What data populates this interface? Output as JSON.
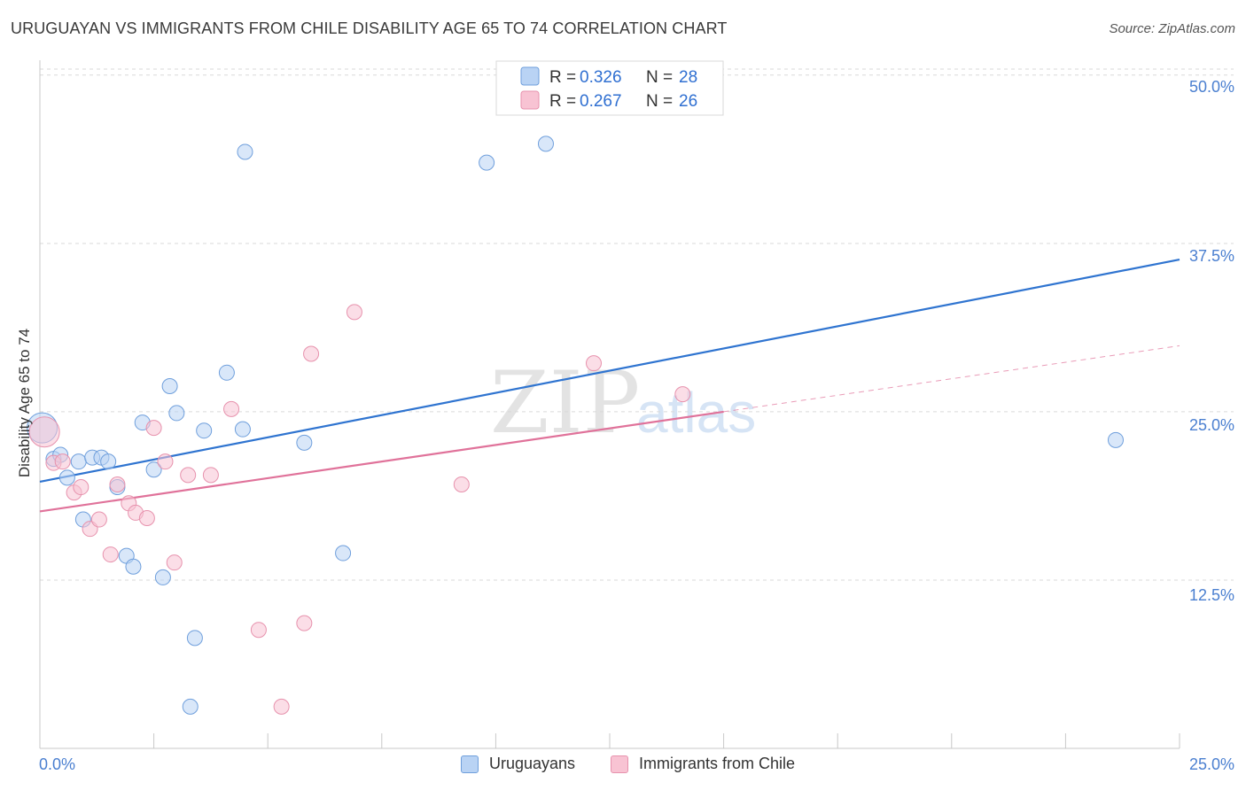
{
  "title": "URUGUAYAN VS IMMIGRANTS FROM CHILE DISABILITY AGE 65 TO 74 CORRELATION CHART",
  "source": "Source: ZipAtlas.com",
  "watermark": {
    "zip": "ZIP",
    "atlas": "atlas"
  },
  "colors": {
    "blue_fill": "#b9d3f4",
    "blue_stroke": "#6f9fdc",
    "blue_line": "#2f74d0",
    "pink_fill": "#f8c3d3",
    "pink_stroke": "#e792ad",
    "pink_line": "#e0729a",
    "axis_text": "#4a7fd0",
    "grid": "#d9d9d9"
  },
  "legend": {
    "row1": {
      "r_label": "R = ",
      "r_value": "0.326",
      "n_label": "N = ",
      "n_value": "28"
    },
    "row2": {
      "r_label": "R = ",
      "r_value": "0.267",
      "n_label": "N = ",
      "n_value": "26"
    }
  },
  "bottom_legend": {
    "series1": "Uruguayans",
    "series2": "Immigrants from Chile"
  },
  "chart_data": {
    "type": "scatter",
    "title": "URUGUAYAN VS IMMIGRANTS FROM CHILE DISABILITY AGE 65 TO 74 CORRELATION CHART",
    "xlabel": "",
    "ylabel": "Disability Age 65 to 74",
    "xlim": [
      0,
      25
    ],
    "ylim": [
      0,
      51.5
    ],
    "x_tick_labels": [
      "0.0%",
      "25.0%"
    ],
    "y_ticks": [
      12.5,
      25.0,
      37.5,
      50.0
    ],
    "y_tick_labels": [
      "12.5%",
      "25.0%",
      "37.5%",
      "50.0%"
    ],
    "grid": true,
    "legend_position": "top-center",
    "series": [
      {
        "name": "Uruguayans",
        "r": 0.326,
        "n": 28,
        "trend": {
          "x": [
            0,
            25
          ],
          "y": [
            19.8,
            36.3
          ],
          "style": "solid"
        },
        "points": [
          [
            0.05,
            23.8
          ],
          [
            0.3,
            21.5
          ],
          [
            0.45,
            21.8
          ],
          [
            0.6,
            20.1
          ],
          [
            0.85,
            21.3
          ],
          [
            0.95,
            17.0
          ],
          [
            1.15,
            21.6
          ],
          [
            1.35,
            21.6
          ],
          [
            1.5,
            21.3
          ],
          [
            1.7,
            19.4
          ],
          [
            1.9,
            14.3
          ],
          [
            2.05,
            13.5
          ],
          [
            2.25,
            24.2
          ],
          [
            2.5,
            20.7
          ],
          [
            2.7,
            12.7
          ],
          [
            2.85,
            26.9
          ],
          [
            3.0,
            24.9
          ],
          [
            3.4,
            8.2
          ],
          [
            3.3,
            3.1
          ],
          [
            3.6,
            23.6
          ],
          [
            4.1,
            27.9
          ],
          [
            4.5,
            44.3
          ],
          [
            4.45,
            23.7
          ],
          [
            5.8,
            22.7
          ],
          [
            6.65,
            14.5
          ],
          [
            9.8,
            43.5
          ],
          [
            11.1,
            44.9
          ],
          [
            23.6,
            22.9
          ]
        ]
      },
      {
        "name": "Immigrants from Chile",
        "r": 0.267,
        "n": 26,
        "trend": {
          "x": [
            0,
            15
          ],
          "y": [
            17.6,
            25.0
          ],
          "style": "solid"
        },
        "trend_extension": {
          "x": [
            15,
            25
          ],
          "y": [
            25.0,
            29.9
          ],
          "style": "dashed"
        },
        "points": [
          [
            0.1,
            23.5
          ],
          [
            0.3,
            21.2
          ],
          [
            0.5,
            21.3
          ],
          [
            0.75,
            19.0
          ],
          [
            0.9,
            19.4
          ],
          [
            1.1,
            16.3
          ],
          [
            1.3,
            17.0
          ],
          [
            1.55,
            14.4
          ],
          [
            1.7,
            19.6
          ],
          [
            1.95,
            18.2
          ],
          [
            2.1,
            17.5
          ],
          [
            2.35,
            17.1
          ],
          [
            2.5,
            23.8
          ],
          [
            2.75,
            21.3
          ],
          [
            2.95,
            13.8
          ],
          [
            3.25,
            20.3
          ],
          [
            3.75,
            20.3
          ],
          [
            4.2,
            25.2
          ],
          [
            4.8,
            8.8
          ],
          [
            5.3,
            3.1
          ],
          [
            5.8,
            9.3
          ],
          [
            5.95,
            29.3
          ],
          [
            6.9,
            32.4
          ],
          [
            9.25,
            19.6
          ],
          [
            12.15,
            28.6
          ],
          [
            14.1,
            26.3
          ]
        ]
      }
    ]
  }
}
